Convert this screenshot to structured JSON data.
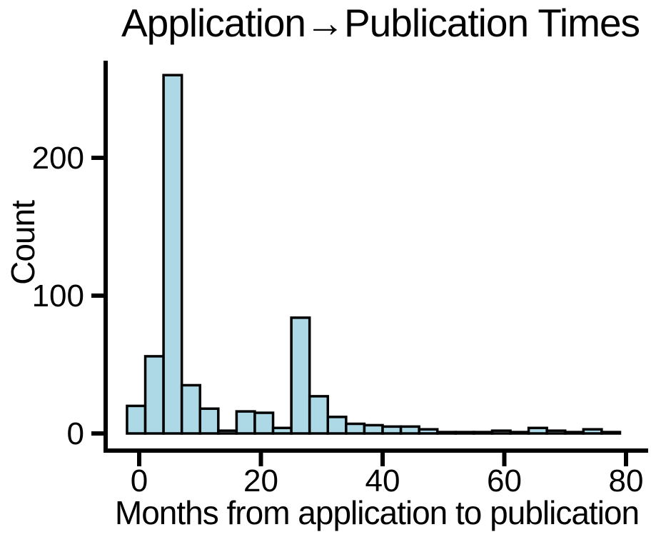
{
  "figure": {
    "background": "#ffffff"
  },
  "chart_data": {
    "type": "histogram",
    "title": "Application→Publication Times",
    "xlabel": "Months from application to publication",
    "ylabel": "Count",
    "x_ticks": [
      0,
      20,
      40,
      60,
      80
    ],
    "y_ticks": [
      0,
      100,
      200
    ],
    "xlim": [
      -6,
      84
    ],
    "ylim": [
      0,
      270
    ],
    "grid": false,
    "legend": "none",
    "bin_width_months": 3,
    "bins": [
      {
        "start": -2,
        "end": 1,
        "count": 20
      },
      {
        "start": 1,
        "end": 4,
        "count": 56
      },
      {
        "start": 4,
        "end": 7,
        "count": 260
      },
      {
        "start": 7,
        "end": 10,
        "count": 35
      },
      {
        "start": 10,
        "end": 13,
        "count": 18
      },
      {
        "start": 13,
        "end": 16,
        "count": 2
      },
      {
        "start": 16,
        "end": 19,
        "count": 16
      },
      {
        "start": 19,
        "end": 22,
        "count": 15
      },
      {
        "start": 22,
        "end": 25,
        "count": 4
      },
      {
        "start": 25,
        "end": 28,
        "count": 84
      },
      {
        "start": 28,
        "end": 31,
        "count": 27
      },
      {
        "start": 31,
        "end": 34,
        "count": 12
      },
      {
        "start": 34,
        "end": 37,
        "count": 7
      },
      {
        "start": 37,
        "end": 40,
        "count": 6
      },
      {
        "start": 40,
        "end": 43,
        "count": 5
      },
      {
        "start": 43,
        "end": 46,
        "count": 5
      },
      {
        "start": 46,
        "end": 49,
        "count": 3
      },
      {
        "start": 49,
        "end": 52,
        "count": 1
      },
      {
        "start": 52,
        "end": 55,
        "count": 1
      },
      {
        "start": 55,
        "end": 58,
        "count": 1
      },
      {
        "start": 58,
        "end": 61,
        "count": 2
      },
      {
        "start": 61,
        "end": 64,
        "count": 1
      },
      {
        "start": 64,
        "end": 67,
        "count": 4
      },
      {
        "start": 67,
        "end": 70,
        "count": 2
      },
      {
        "start": 70,
        "end": 73,
        "count": 1
      },
      {
        "start": 73,
        "end": 76,
        "count": 3
      },
      {
        "start": 76,
        "end": 79,
        "count": 1
      }
    ],
    "colors": {
      "bar_fill": "#ADD8E6",
      "bar_edge": "#000000",
      "axis": "#000000",
      "text": "#000000"
    }
  }
}
